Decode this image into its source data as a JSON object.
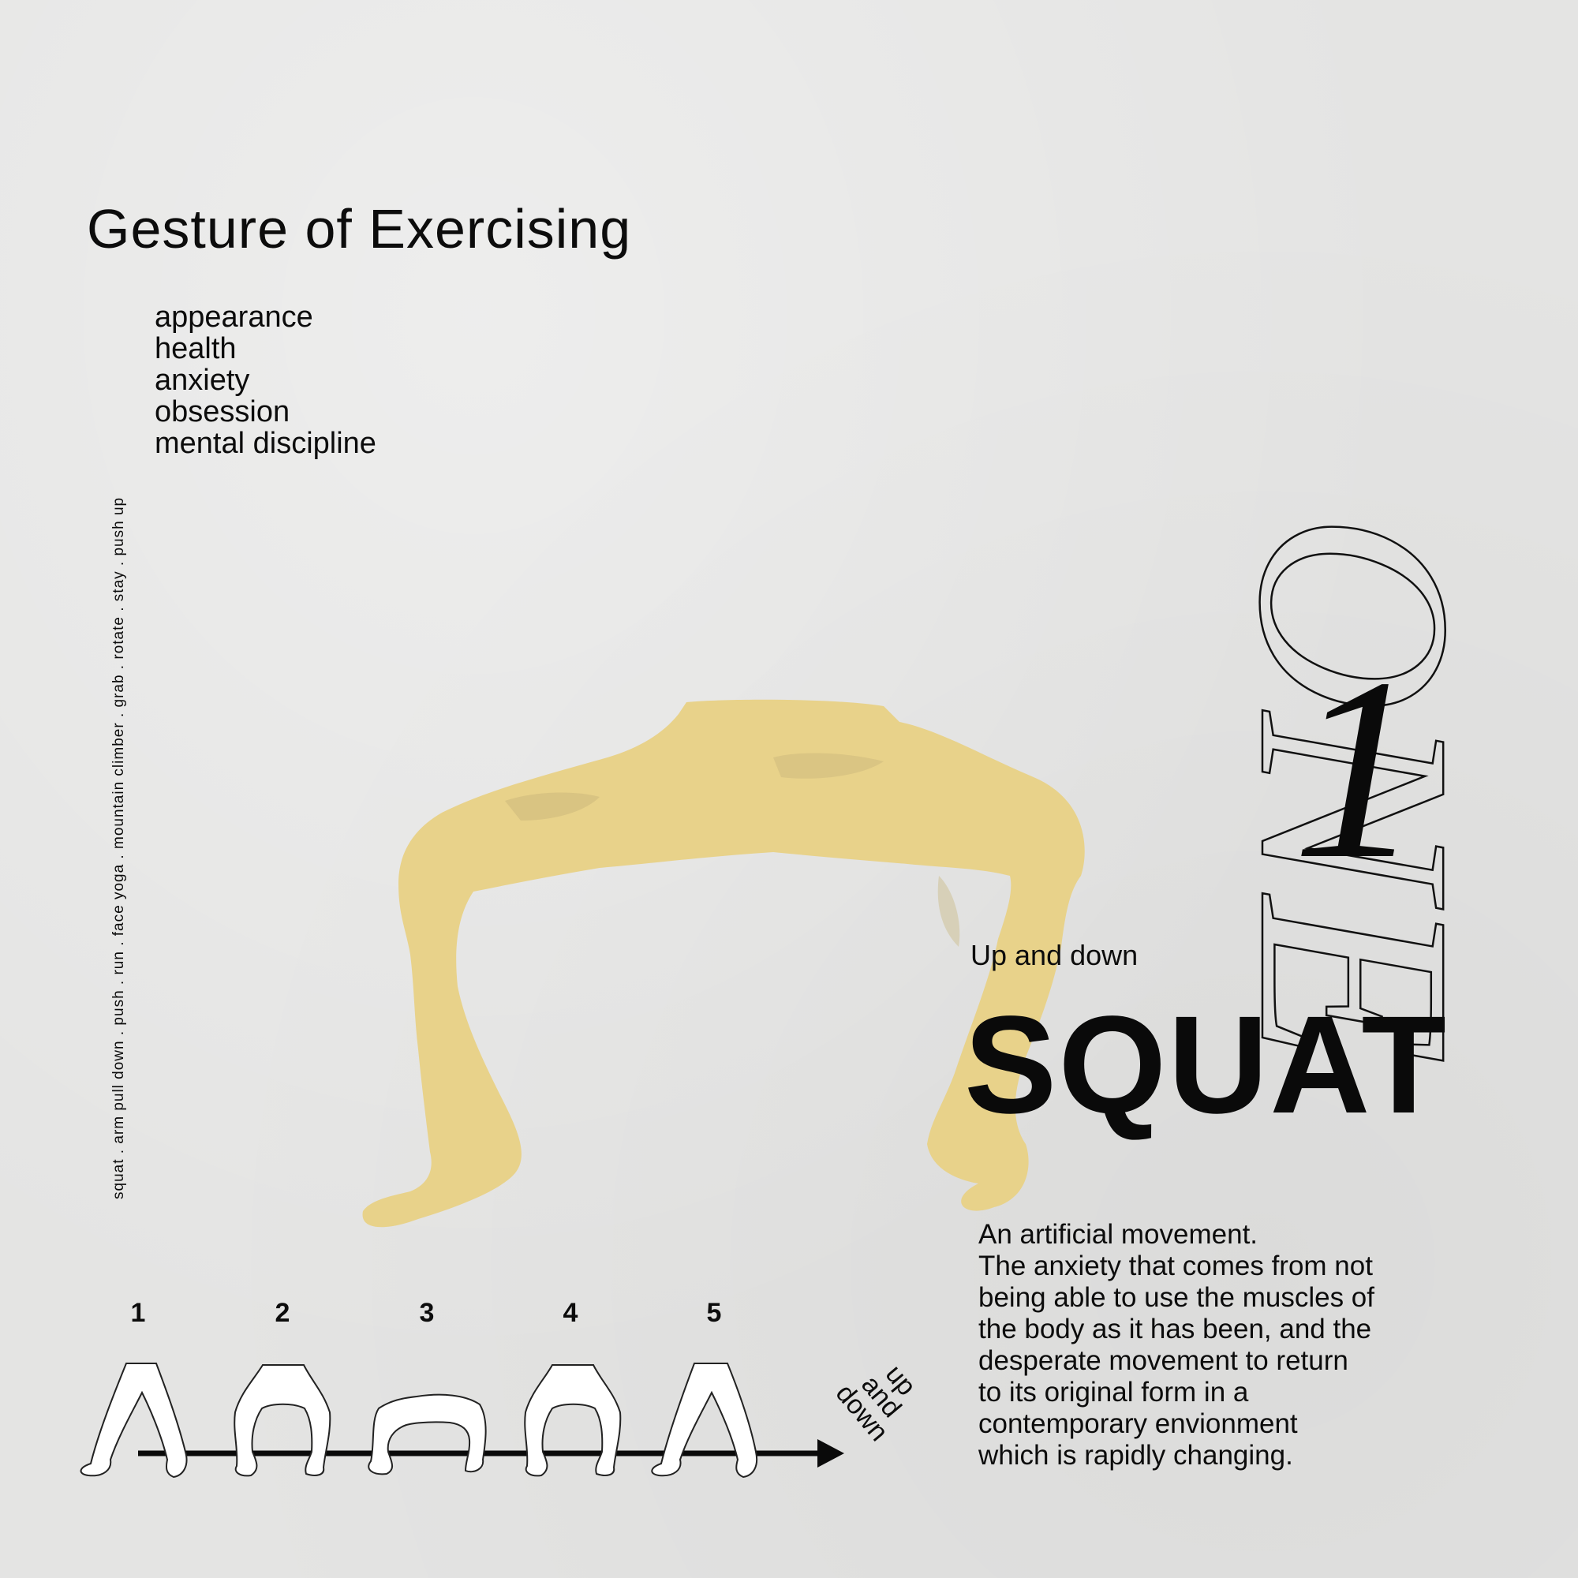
{
  "title": "Gesture of Exercising",
  "keywords": [
    "appearance",
    "health",
    "anxiety",
    "obsession",
    "mental discipline"
  ],
  "exercise_list": "squat . arm pull down . push . run . face yoga . mountain climber . grab . rotate . stay . push up",
  "big_word": "ONE",
  "big_numeral": "1",
  "subtitle": "Up and down",
  "heading": "SQUAT",
  "description_lines": [
    "An artificial movement.",
    "The anxiety that comes from not",
    "being able to use the muscles of",
    "the body as it has been, and the",
    "desperate movement to return",
    "to its original form in a",
    "contemporary envionment",
    "which is rapidly changing."
  ],
  "steps": [
    "1",
    "2",
    "3",
    "4",
    "5"
  ],
  "axis_label": [
    "up",
    "and",
    "down"
  ],
  "colors": {
    "background": "#e4e4e3",
    "figure": "#e8d28a",
    "ink": "#0c0c0c"
  }
}
